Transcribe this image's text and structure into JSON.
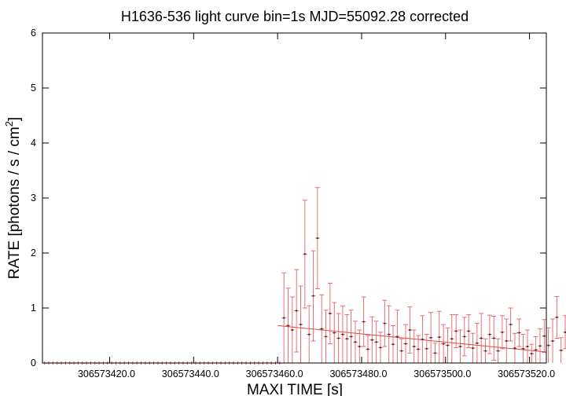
{
  "chart_data": {
    "type": "scatter",
    "title": "H1636-536 light curve bin=1s MJD=55092.28 corrected",
    "xlabel": "MAXI TIME [s]",
    "ylabel": "RATE [photons / s / cm",
    "ylabel_superscript": "2",
    "ylabel_suffix": "]",
    "xlim": [
      306573404,
      306573524
    ],
    "ylim": [
      0,
      6
    ],
    "xticks": [
      306573420,
      306573440,
      306573460,
      306573480,
      306573500,
      306573520
    ],
    "xtick_labels": [
      "306573420.0",
      "306573440.0",
      "306573460.0",
      "306573480.0",
      "306573500.0",
      "306573520.0"
    ],
    "yticks": [
      0,
      1,
      2,
      3,
      4,
      5,
      6
    ],
    "ytick_labels": [
      "0",
      "1",
      "2",
      "3",
      "4",
      "5",
      "6"
    ],
    "grid": false,
    "series_color": "#e0464a",
    "series": [
      {
        "x_start": 306573404.5,
        "x_step": 1,
        "values": [
          0,
          0,
          0,
          0,
          0,
          0,
          0,
          0,
          0,
          0,
          0,
          0,
          0,
          0,
          0,
          0,
          0,
          0,
          0,
          0,
          0,
          0,
          0,
          0,
          0,
          0,
          0,
          0,
          0,
          0,
          0,
          0,
          0,
          0,
          0,
          0,
          0,
          0,
          0,
          0,
          0,
          0,
          0,
          0,
          0,
          0,
          0,
          0,
          0,
          0,
          0,
          0,
          0,
          0,
          0,
          0,
          0,
          0.82,
          0.68,
          0.6,
          0.95,
          0.7,
          1.98,
          0.52,
          1.22,
          2.27,
          0.62,
          0.48,
          0.9,
          0.55,
          0.45,
          0.52,
          0.44,
          0.48,
          0.38,
          0.3,
          0.75,
          0.25,
          0.42,
          0.38,
          0.28,
          0.72,
          0.52,
          0.34,
          0.48,
          0.22,
          0.35,
          0.6,
          0.3,
          0.25,
          0.43,
          0.26,
          0.46,
          0.18,
          0.47,
          0.35,
          0.32,
          0.44,
          0.58,
          0.3,
          0.48,
          0.58,
          0.27,
          0.36,
          0.45,
          0.22,
          0.52,
          0.45,
          0.22,
          0.56,
          0.4,
          0.7,
          0.27,
          0.55,
          0.26,
          0.3,
          0.17,
          0.24,
          0.31,
          0.49,
          0.32,
          0.4,
          0.83,
          0.23,
          0.56,
          0.44,
          0.6,
          0.45
        ],
        "errors": [
          0,
          0,
          0,
          0,
          0,
          0,
          0,
          0,
          0,
          0,
          0,
          0,
          0,
          0,
          0,
          0,
          0,
          0,
          0,
          0,
          0,
          0,
          0,
          0,
          0,
          0,
          0,
          0,
          0,
          0,
          0,
          0,
          0,
          0,
          0,
          0,
          0,
          0,
          0,
          0,
          0,
          0,
          0,
          0,
          0,
          0,
          0,
          0,
          0,
          0,
          0,
          0,
          0,
          0,
          0,
          0,
          0,
          0.82,
          0.68,
          0.6,
          0.75,
          0.7,
          0.98,
          0.52,
          0.82,
          0.92,
          0.62,
          0.48,
          0.55,
          0.55,
          0.45,
          0.52,
          0.44,
          0.48,
          0.38,
          0.3,
          0.45,
          0.25,
          0.42,
          0.38,
          0.28,
          0.42,
          0.52,
          0.34,
          0.48,
          0.22,
          0.35,
          0.42,
          0.3,
          0.25,
          0.43,
          0.26,
          0.46,
          0.18,
          0.47,
          0.35,
          0.32,
          0.44,
          0.3,
          0.3,
          0.35,
          0.3,
          0.27,
          0.36,
          0.45,
          0.22,
          0.35,
          0.4,
          0.22,
          0.3,
          0.4,
          0.3,
          0.27,
          0.25,
          0.26,
          0.3,
          0.17,
          0.24,
          0.31,
          0.3,
          0.32,
          0.4,
          0.38,
          0.23,
          0.3,
          0.3,
          0.3,
          0.3
        ],
        "baseline_trend": {
          "x_start": 306573460,
          "x_end": 306573524,
          "y_start": 0.68,
          "y_end": 0.2
        }
      }
    ]
  }
}
